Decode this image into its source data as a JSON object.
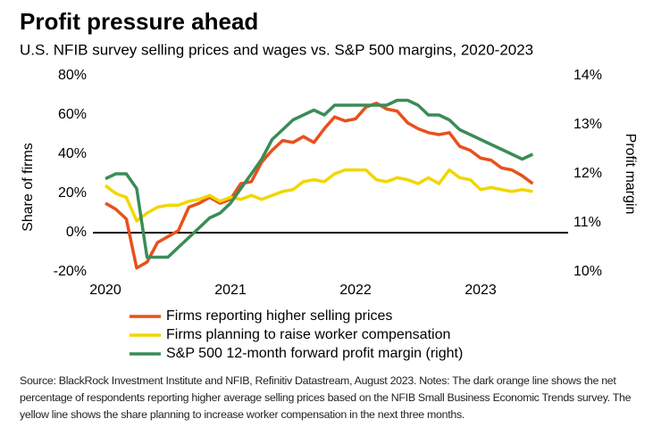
{
  "chart_data": {
    "type": "line",
    "title": "Profit pressure ahead",
    "subtitle": "U.S. NFIB survey selling prices and wages vs. S&P 500 margins, 2020-2023",
    "y_label": "Share of firms",
    "y2_label": "Profit margin",
    "source": "Source: BlackRock Investment Institute and NFIB, Refinitiv Datastream,  August 2023. Notes: The dark orange line shows the net percentage of respondents reporting higher average selling prices based on the NFIB Small Business Economic Trends survey. The yellow line shows the share planning to increase worker compensation in the next three months.",
    "x": [
      2020,
      2020.083,
      2020.167,
      2020.25,
      2020.333,
      2020.417,
      2020.5,
      2020.583,
      2020.667,
      2020.75,
      2020.833,
      2020.917,
      2021,
      2021.083,
      2021.167,
      2021.25,
      2021.333,
      2021.417,
      2021.5,
      2021.583,
      2021.667,
      2021.75,
      2021.833,
      2021.917,
      2022,
      2022.083,
      2022.167,
      2022.25,
      2022.333,
      2022.417,
      2022.5,
      2022.583,
      2022.667,
      2022.75,
      2022.833,
      2022.917,
      2023,
      2023.083,
      2023.167,
      2023.25,
      2023.333,
      2023.417
    ],
    "xlim": [
      2019.9,
      2023.7
    ],
    "xticks": [
      2020,
      2021,
      2022,
      2023
    ],
    "ylim": [
      -20,
      80
    ],
    "yticks": [
      {
        "value": -20,
        "label": "-20%"
      },
      {
        "value": 0,
        "label": "0%"
      },
      {
        "value": 20,
        "label": "20%"
      },
      {
        "value": 40,
        "label": "40%"
      },
      {
        "value": 60,
        "label": "60%"
      },
      {
        "value": 80,
        "label": "80%"
      }
    ],
    "y2lim": [
      10,
      14
    ],
    "y2ticks": [
      {
        "value": 10,
        "label": "10%"
      },
      {
        "value": 11,
        "label": "11%"
      },
      {
        "value": 12,
        "label": "12%"
      },
      {
        "value": 13,
        "label": "13%"
      },
      {
        "value": 14,
        "label": "14%"
      }
    ],
    "zero_line": true,
    "series": [
      {
        "name": "Firms reporting higher selling prices",
        "color": "#e8501c",
        "values": [
          15,
          12,
          7,
          -18,
          -15,
          -5,
          -2,
          1,
          13,
          15,
          18,
          15,
          17,
          25,
          26,
          36,
          42,
          47,
          46,
          49,
          46,
          53,
          59,
          57,
          58,
          64,
          66,
          63,
          62,
          56,
          53,
          51,
          50,
          51,
          44,
          42,
          38,
          37,
          33,
          32,
          29,
          25
        ]
      },
      {
        "name": "Firms planning to raise worker compensation",
        "color": "#f2d600",
        "values": [
          24,
          20,
          18,
          6,
          10,
          13,
          14,
          14,
          16,
          17,
          19,
          16,
          18,
          17,
          19,
          17,
          19,
          21,
          22,
          26,
          27,
          26,
          30,
          32,
          32,
          32,
          27,
          26,
          28,
          27,
          25,
          28,
          25,
          32,
          28,
          27,
          22,
          23,
          22,
          21,
          22,
          21
        ]
      },
      {
        "name": "S&P 500 12-month forward profit margin (right)",
        "color": "#3a8c57",
        "axis": "y2",
        "values": [
          11.9,
          12.0,
          12.0,
          11.7,
          10.3,
          10.3,
          10.3,
          10.5,
          10.7,
          10.9,
          11.1,
          11.2,
          11.4,
          11.7,
          12.0,
          12.3,
          12.7,
          12.9,
          13.1,
          13.2,
          13.3,
          13.2,
          13.4,
          13.4,
          13.4,
          13.4,
          13.4,
          13.4,
          13.5,
          13.5,
          13.4,
          13.2,
          13.2,
          13.1,
          12.9,
          12.8,
          12.7,
          12.6,
          12.5,
          12.4,
          12.3,
          12.4
        ]
      }
    ]
  }
}
